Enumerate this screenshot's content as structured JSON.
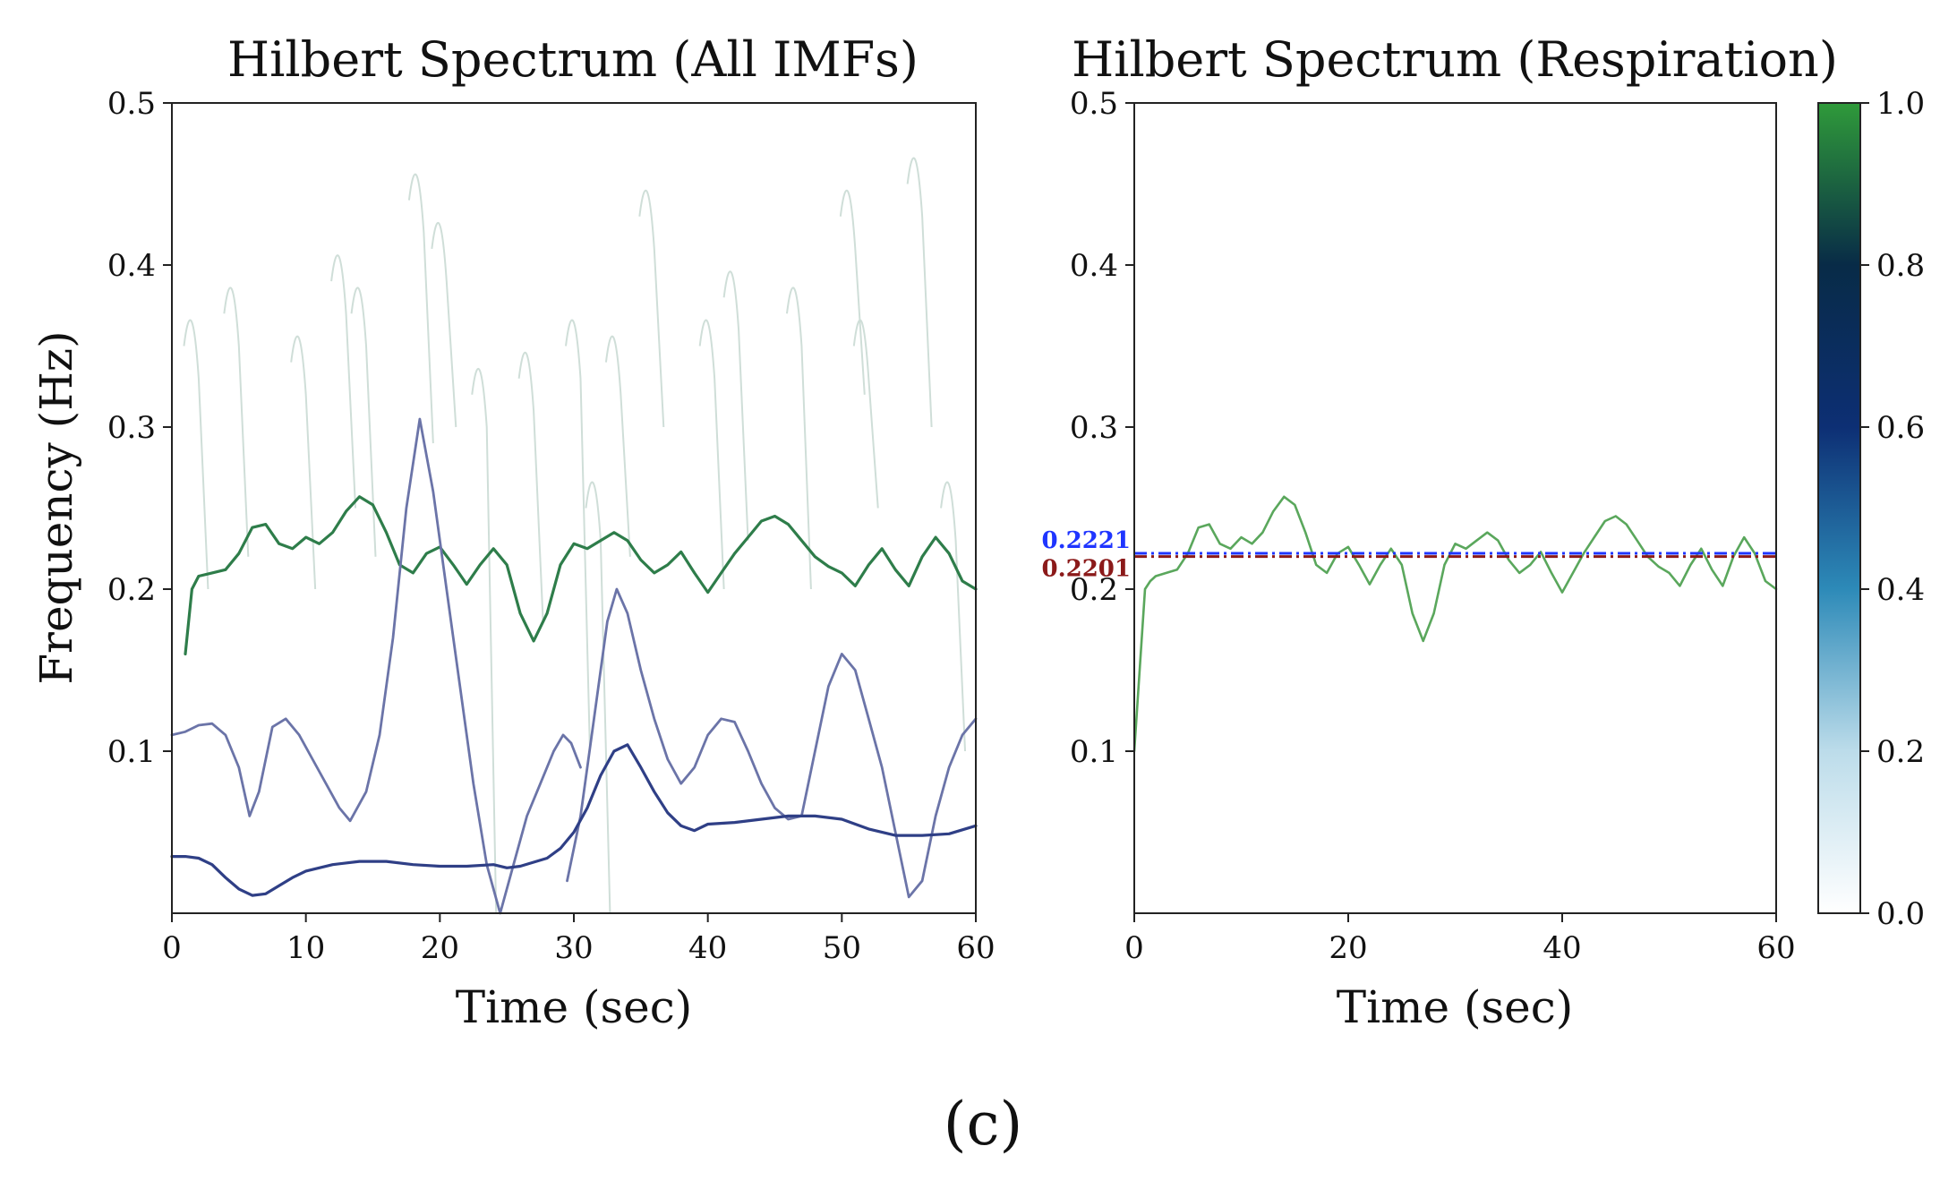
{
  "figure": {
    "caption": "(c)"
  },
  "chart_data": [
    {
      "type": "heatmap",
      "title": "Hilbert Spectrum (All IMFs)",
      "xlabel": "Time (sec)",
      "ylabel": "Frequency (Hz)",
      "xlim": [
        0,
        60
      ],
      "ylim": [
        0,
        0.5
      ],
      "xticks": [
        "0",
        "10",
        "20",
        "30",
        "40",
        "50",
        "60"
      ],
      "yticks": [
        "0.1",
        "0.2",
        "0.3",
        "0.4",
        "0.5"
      ],
      "series": [
        {
          "color": "#2e7d4a",
          "width": 3.2,
          "x": [
            1,
            1.5,
            2,
            3,
            4,
            5,
            6,
            7,
            8,
            9,
            10,
            11,
            12,
            13,
            14,
            15,
            16,
            17,
            18,
            19,
            20,
            21,
            22,
            23,
            24,
            25,
            26,
            27,
            28,
            29,
            30,
            31,
            32,
            33,
            34,
            35,
            36,
            37,
            38,
            39,
            40,
            41,
            42,
            43,
            44,
            45,
            46,
            47,
            48,
            49,
            50,
            51,
            52,
            53,
            54,
            55,
            56,
            57,
            58,
            59,
            60
          ],
          "y": [
            0.16,
            0.2,
            0.208,
            0.21,
            0.212,
            0.222,
            0.238,
            0.24,
            0.228,
            0.225,
            0.232,
            0.228,
            0.235,
            0.248,
            0.257,
            0.252,
            0.235,
            0.215,
            0.21,
            0.222,
            0.226,
            0.215,
            0.203,
            0.215,
            0.225,
            0.215,
            0.185,
            0.168,
            0.185,
            0.215,
            0.228,
            0.225,
            0.23,
            0.235,
            0.23,
            0.218,
            0.21,
            0.215,
            0.223,
            0.21,
            0.198,
            0.21,
            0.222,
            0.232,
            0.242,
            0.245,
            0.24,
            0.23,
            0.22,
            0.214,
            0.21,
            0.202,
            0.215,
            0.225,
            0.212,
            0.202,
            0.22,
            0.232,
            0.222,
            0.205,
            0.2
          ]
        },
        {
          "color": "#6b74a8",
          "width": 2.8,
          "x": [
            0,
            1,
            2,
            3,
            4,
            5,
            5.8,
            6.5,
            7.5,
            8.5,
            9.5,
            10.5,
            11.5,
            12.5,
            13.3,
            14.5,
            15.5,
            16.5,
            17.5,
            18.5,
            19.5,
            20.5,
            21.5,
            22.5,
            23.5,
            24.5,
            25.5,
            26.5,
            27.5,
            28.5,
            29.2,
            29.8,
            30.5
          ],
          "y": [
            0.11,
            0.112,
            0.116,
            0.117,
            0.11,
            0.09,
            0.06,
            0.075,
            0.115,
            0.12,
            0.11,
            0.095,
            0.08,
            0.065,
            0.057,
            0.075,
            0.11,
            0.17,
            0.25,
            0.305,
            0.26,
            0.2,
            0.14,
            0.08,
            0.03,
            0.0,
            0.03,
            0.06,
            0.08,
            0.1,
            0.11,
            0.105,
            0.09
          ]
        },
        {
          "color": "#6b74a8",
          "width": 2.8,
          "x": [
            29.5,
            30.5,
            31.5,
            32.5,
            33.2,
            34,
            35,
            36,
            37,
            38,
            39,
            40,
            41,
            42,
            43,
            44,
            45,
            46,
            47,
            48,
            49,
            50,
            51,
            52,
            53,
            54,
            55,
            56,
            57,
            58,
            59,
            60
          ],
          "y": [
            0.02,
            0.06,
            0.12,
            0.18,
            0.2,
            0.185,
            0.15,
            0.12,
            0.095,
            0.08,
            0.09,
            0.11,
            0.12,
            0.118,
            0.1,
            0.08,
            0.065,
            0.058,
            0.06,
            0.1,
            0.14,
            0.16,
            0.15,
            0.12,
            0.09,
            0.05,
            0.01,
            0.02,
            0.06,
            0.09,
            0.11,
            0.12
          ]
        },
        {
          "color": "#2f3f86",
          "width": 3.2,
          "x": [
            0,
            1,
            2,
            3,
            4,
            5,
            6,
            7,
            8,
            9,
            10,
            12,
            14,
            16,
            18,
            20,
            22,
            24,
            25,
            26,
            28,
            29,
            30,
            31,
            32,
            33,
            34,
            35,
            36,
            37,
            38,
            39,
            40,
            42,
            44,
            46,
            48,
            50,
            52,
            54,
            56,
            58,
            60
          ],
          "y": [
            0.035,
            0.035,
            0.034,
            0.03,
            0.022,
            0.015,
            0.011,
            0.012,
            0.017,
            0.022,
            0.026,
            0.03,
            0.032,
            0.032,
            0.03,
            0.029,
            0.029,
            0.03,
            0.028,
            0.029,
            0.034,
            0.04,
            0.05,
            0.065,
            0.085,
            0.1,
            0.104,
            0.09,
            0.075,
            0.062,
            0.054,
            0.051,
            0.055,
            0.056,
            0.058,
            0.06,
            0.06,
            0.058,
            0.052,
            0.048,
            0.048,
            0.049,
            0.054
          ]
        }
      ],
      "faint_color": "#cfded8"
    },
    {
      "type": "heatmap",
      "title": "Hilbert Spectrum (Respiration)",
      "xlabel": "Time (sec)",
      "ylabel": "",
      "xlim": [
        0,
        60
      ],
      "ylim": [
        0,
        0.5
      ],
      "xticks": [
        "0",
        "20",
        "40",
        "60"
      ],
      "yticks": [
        "0.1",
        "0.2",
        "0.3",
        "0.4",
        "0.5"
      ],
      "series": [
        {
          "color": "#5aa75c",
          "width": 2.6,
          "x": [
            0,
            0.5,
            1,
            1.5,
            2,
            3,
            4,
            5,
            6,
            7,
            8,
            9,
            10,
            11,
            12,
            13,
            14,
            15,
            16,
            17,
            18,
            19,
            20,
            21,
            22,
            23,
            24,
            25,
            26,
            27,
            28,
            29,
            30,
            31,
            32,
            33,
            34,
            35,
            36,
            37,
            38,
            39,
            40,
            41,
            42,
            43,
            44,
            45,
            46,
            47,
            48,
            49,
            50,
            51,
            52,
            53,
            54,
            55,
            56,
            57,
            58,
            59,
            60
          ],
          "y": [
            0.1,
            0.15,
            0.2,
            0.205,
            0.208,
            0.21,
            0.212,
            0.222,
            0.238,
            0.24,
            0.228,
            0.225,
            0.232,
            0.228,
            0.235,
            0.248,
            0.257,
            0.252,
            0.235,
            0.215,
            0.21,
            0.222,
            0.226,
            0.215,
            0.203,
            0.215,
            0.225,
            0.215,
            0.185,
            0.168,
            0.185,
            0.215,
            0.228,
            0.225,
            0.23,
            0.235,
            0.23,
            0.218,
            0.21,
            0.215,
            0.223,
            0.21,
            0.198,
            0.21,
            0.222,
            0.232,
            0.242,
            0.245,
            0.24,
            0.23,
            0.22,
            0.214,
            0.21,
            0.202,
            0.215,
            0.225,
            0.212,
            0.202,
            0.22,
            0.232,
            0.222,
            0.205,
            0.2
          ]
        }
      ],
      "reference_lines": [
        {
          "label": "0.2221",
          "value": 0.2221,
          "color": "#1f35ff",
          "style": "dash-dot"
        },
        {
          "label": "0.2201",
          "value": 0.2201,
          "color": "#8b1a1a",
          "style": "dash-dot"
        }
      ],
      "colorbar": {
        "range": [
          0,
          1
        ],
        "ticks": [
          "0.0",
          "0.2",
          "0.4",
          "0.6",
          "0.8",
          "1.0"
        ],
        "colors": [
          "#ffffff",
          "#bcdcea",
          "#2d8ab8",
          "#0d2f74",
          "#082b47",
          "#2f9a3a"
        ]
      }
    }
  ]
}
